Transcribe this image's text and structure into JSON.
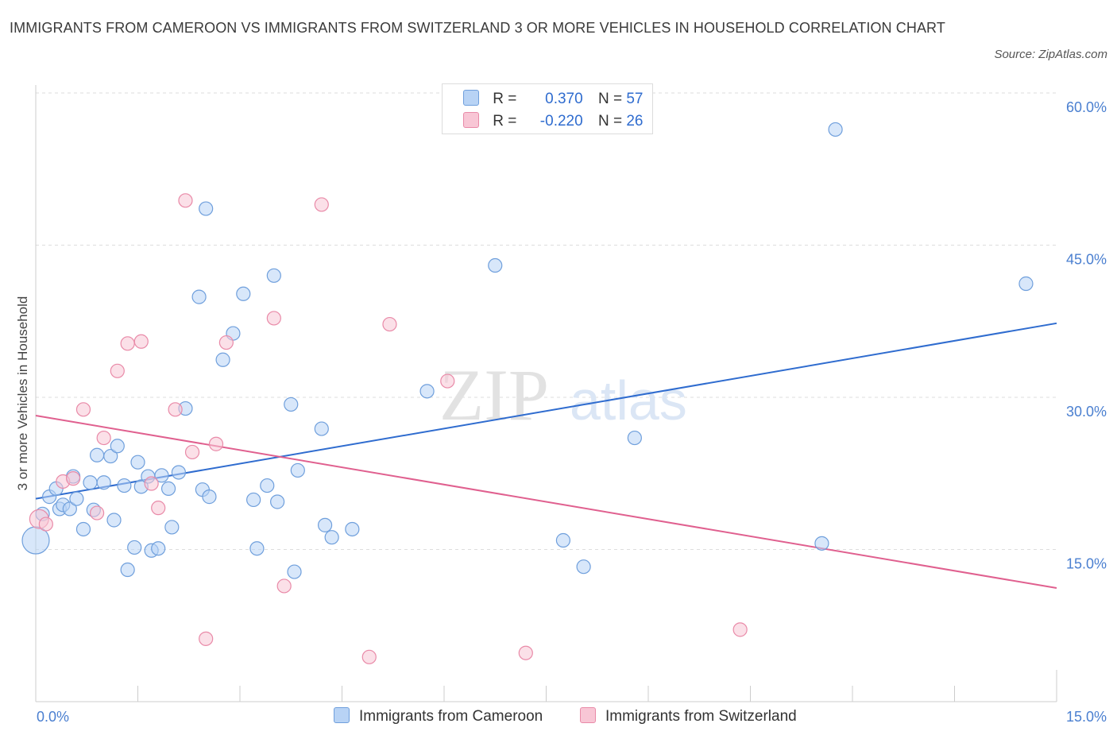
{
  "header": {
    "title": "IMMIGRANTS FROM CAMEROON VS IMMIGRANTS FROM SWITZERLAND 3 OR MORE VEHICLES IN HOUSEHOLD CORRELATION CHART",
    "source": "Source: ZipAtlas.com"
  },
  "legend": {
    "series": [
      {
        "r_label": "R =",
        "r_value": "0.370",
        "n_label": "N =",
        "n_value": "57"
      },
      {
        "r_label": "R =",
        "r_value": "-0.220",
        "n_label": "N =",
        "n_value": "26"
      }
    ]
  },
  "watermark": {
    "zip": "ZIP",
    "atlas": "atlas"
  },
  "colors": {
    "blue_fill": "#b8d3f5",
    "blue_stroke": "#6f9fdc",
    "blue_line": "#2f6ccf",
    "pink_fill": "#f8c6d5",
    "pink_stroke": "#e98aa8",
    "pink_line": "#e0608f",
    "tick_text": "#4a7fd0",
    "grid": "#dddddd"
  },
  "chart_data": {
    "type": "scatter",
    "title": "IMMIGRANTS FROM CAMEROON VS IMMIGRANTS FROM SWITZERLAND 3 OR MORE VEHICLES IN HOUSEHOLD CORRELATION CHART",
    "xlabel": "",
    "ylabel": "3 or more Vehicles in Household",
    "xlim": [
      0,
      15
    ],
    "ylim": [
      0,
      60
    ],
    "x_ticks": [
      0,
      15
    ],
    "x_tick_labels": [
      "0.0%",
      "15.0%"
    ],
    "y_ticks": [
      15,
      30,
      45,
      60
    ],
    "y_tick_labels": [
      "15.0%",
      "30.0%",
      "45.0%",
      "60.0%"
    ],
    "grid": true,
    "legend_position": "top-center",
    "series": [
      {
        "name": "Immigrants from Cameroon",
        "color": "#6f9fdc",
        "trend": {
          "x": [
            0,
            15
          ],
          "y": [
            20.0,
            37.3
          ]
        },
        "points": [
          [
            0.0,
            15.9,
            2.0
          ],
          [
            0.1,
            18.5,
            1
          ],
          [
            0.2,
            20.2,
            1
          ],
          [
            0.3,
            21.0,
            1
          ],
          [
            0.35,
            19.0,
            1
          ],
          [
            0.4,
            19.4,
            1
          ],
          [
            0.5,
            19.0,
            1
          ],
          [
            0.55,
            22.2,
            1
          ],
          [
            0.6,
            20.0,
            1
          ],
          [
            0.7,
            17.0,
            1
          ],
          [
            0.8,
            21.6,
            1
          ],
          [
            0.85,
            18.9,
            1
          ],
          [
            0.9,
            24.3,
            1
          ],
          [
            1.0,
            21.6,
            1
          ],
          [
            1.1,
            24.2,
            1
          ],
          [
            1.15,
            17.9,
            1
          ],
          [
            1.2,
            25.2,
            1
          ],
          [
            1.3,
            21.3,
            1
          ],
          [
            1.35,
            13.0,
            1
          ],
          [
            1.45,
            15.2,
            1
          ],
          [
            1.5,
            23.6,
            1
          ],
          [
            1.55,
            21.2,
            1
          ],
          [
            1.65,
            22.2,
            1
          ],
          [
            1.7,
            14.9,
            1
          ],
          [
            1.8,
            15.1,
            1
          ],
          [
            1.85,
            22.3,
            1
          ],
          [
            1.95,
            21.0,
            1
          ],
          [
            2.0,
            17.2,
            1
          ],
          [
            2.1,
            22.6,
            1
          ],
          [
            2.2,
            28.9,
            1
          ],
          [
            2.4,
            39.9,
            1
          ],
          [
            2.45,
            20.9,
            1
          ],
          [
            2.5,
            48.6,
            1
          ],
          [
            2.55,
            20.2,
            1
          ],
          [
            2.75,
            33.7,
            1
          ],
          [
            2.9,
            36.3,
            1
          ],
          [
            3.05,
            40.2,
            1
          ],
          [
            3.2,
            19.9,
            1
          ],
          [
            3.25,
            15.1,
            1
          ],
          [
            3.4,
            21.3,
            1
          ],
          [
            3.5,
            42.0,
            1
          ],
          [
            3.55,
            19.7,
            1
          ],
          [
            3.75,
            29.3,
            1
          ],
          [
            3.8,
            12.8,
            1
          ],
          [
            3.85,
            22.8,
            1
          ],
          [
            4.2,
            26.9,
            1
          ],
          [
            4.25,
            17.4,
            1
          ],
          [
            4.35,
            16.2,
            1
          ],
          [
            4.65,
            17.0,
            1
          ],
          [
            5.75,
            30.6,
            1
          ],
          [
            6.75,
            43.0,
            1
          ],
          [
            7.75,
            15.9,
            1
          ],
          [
            8.05,
            13.3,
            1
          ],
          [
            8.8,
            26.0,
            1
          ],
          [
            11.55,
            15.6,
            1
          ],
          [
            11.75,
            56.4,
            1
          ],
          [
            14.55,
            41.2,
            1
          ]
        ]
      },
      {
        "name": "Immigrants from Switzerland",
        "color": "#e98aa8",
        "trend": {
          "x": [
            0,
            15
          ],
          "y": [
            28.2,
            11.2
          ]
        },
        "points": [
          [
            0.05,
            18.0,
            1.4
          ],
          [
            0.15,
            17.5,
            1
          ],
          [
            0.4,
            21.7,
            1
          ],
          [
            0.55,
            22.0,
            1
          ],
          [
            0.7,
            28.8,
            1
          ],
          [
            0.9,
            18.6,
            1
          ],
          [
            1.0,
            26.0,
            1
          ],
          [
            1.2,
            32.6,
            1
          ],
          [
            1.35,
            35.3,
            1
          ],
          [
            1.55,
            35.5,
            1
          ],
          [
            1.7,
            21.5,
            1
          ],
          [
            1.8,
            19.1,
            1
          ],
          [
            2.05,
            28.8,
            1
          ],
          [
            2.2,
            49.4,
            1
          ],
          [
            2.3,
            24.6,
            1
          ],
          [
            2.5,
            6.2,
            1
          ],
          [
            2.65,
            25.4,
            1
          ],
          [
            2.8,
            35.4,
            1
          ],
          [
            3.5,
            37.8,
            1
          ],
          [
            3.65,
            11.4,
            1
          ],
          [
            4.2,
            49.0,
            1
          ],
          [
            4.9,
            4.4,
            1
          ],
          [
            5.2,
            37.2,
            1
          ],
          [
            6.05,
            31.6,
            1
          ],
          [
            7.2,
            4.8,
            1
          ],
          [
            10.35,
            7.1,
            1
          ]
        ]
      }
    ]
  },
  "bottom_legend": {
    "items": [
      "Immigrants from Cameroon",
      "Immigrants from Switzerland"
    ]
  }
}
